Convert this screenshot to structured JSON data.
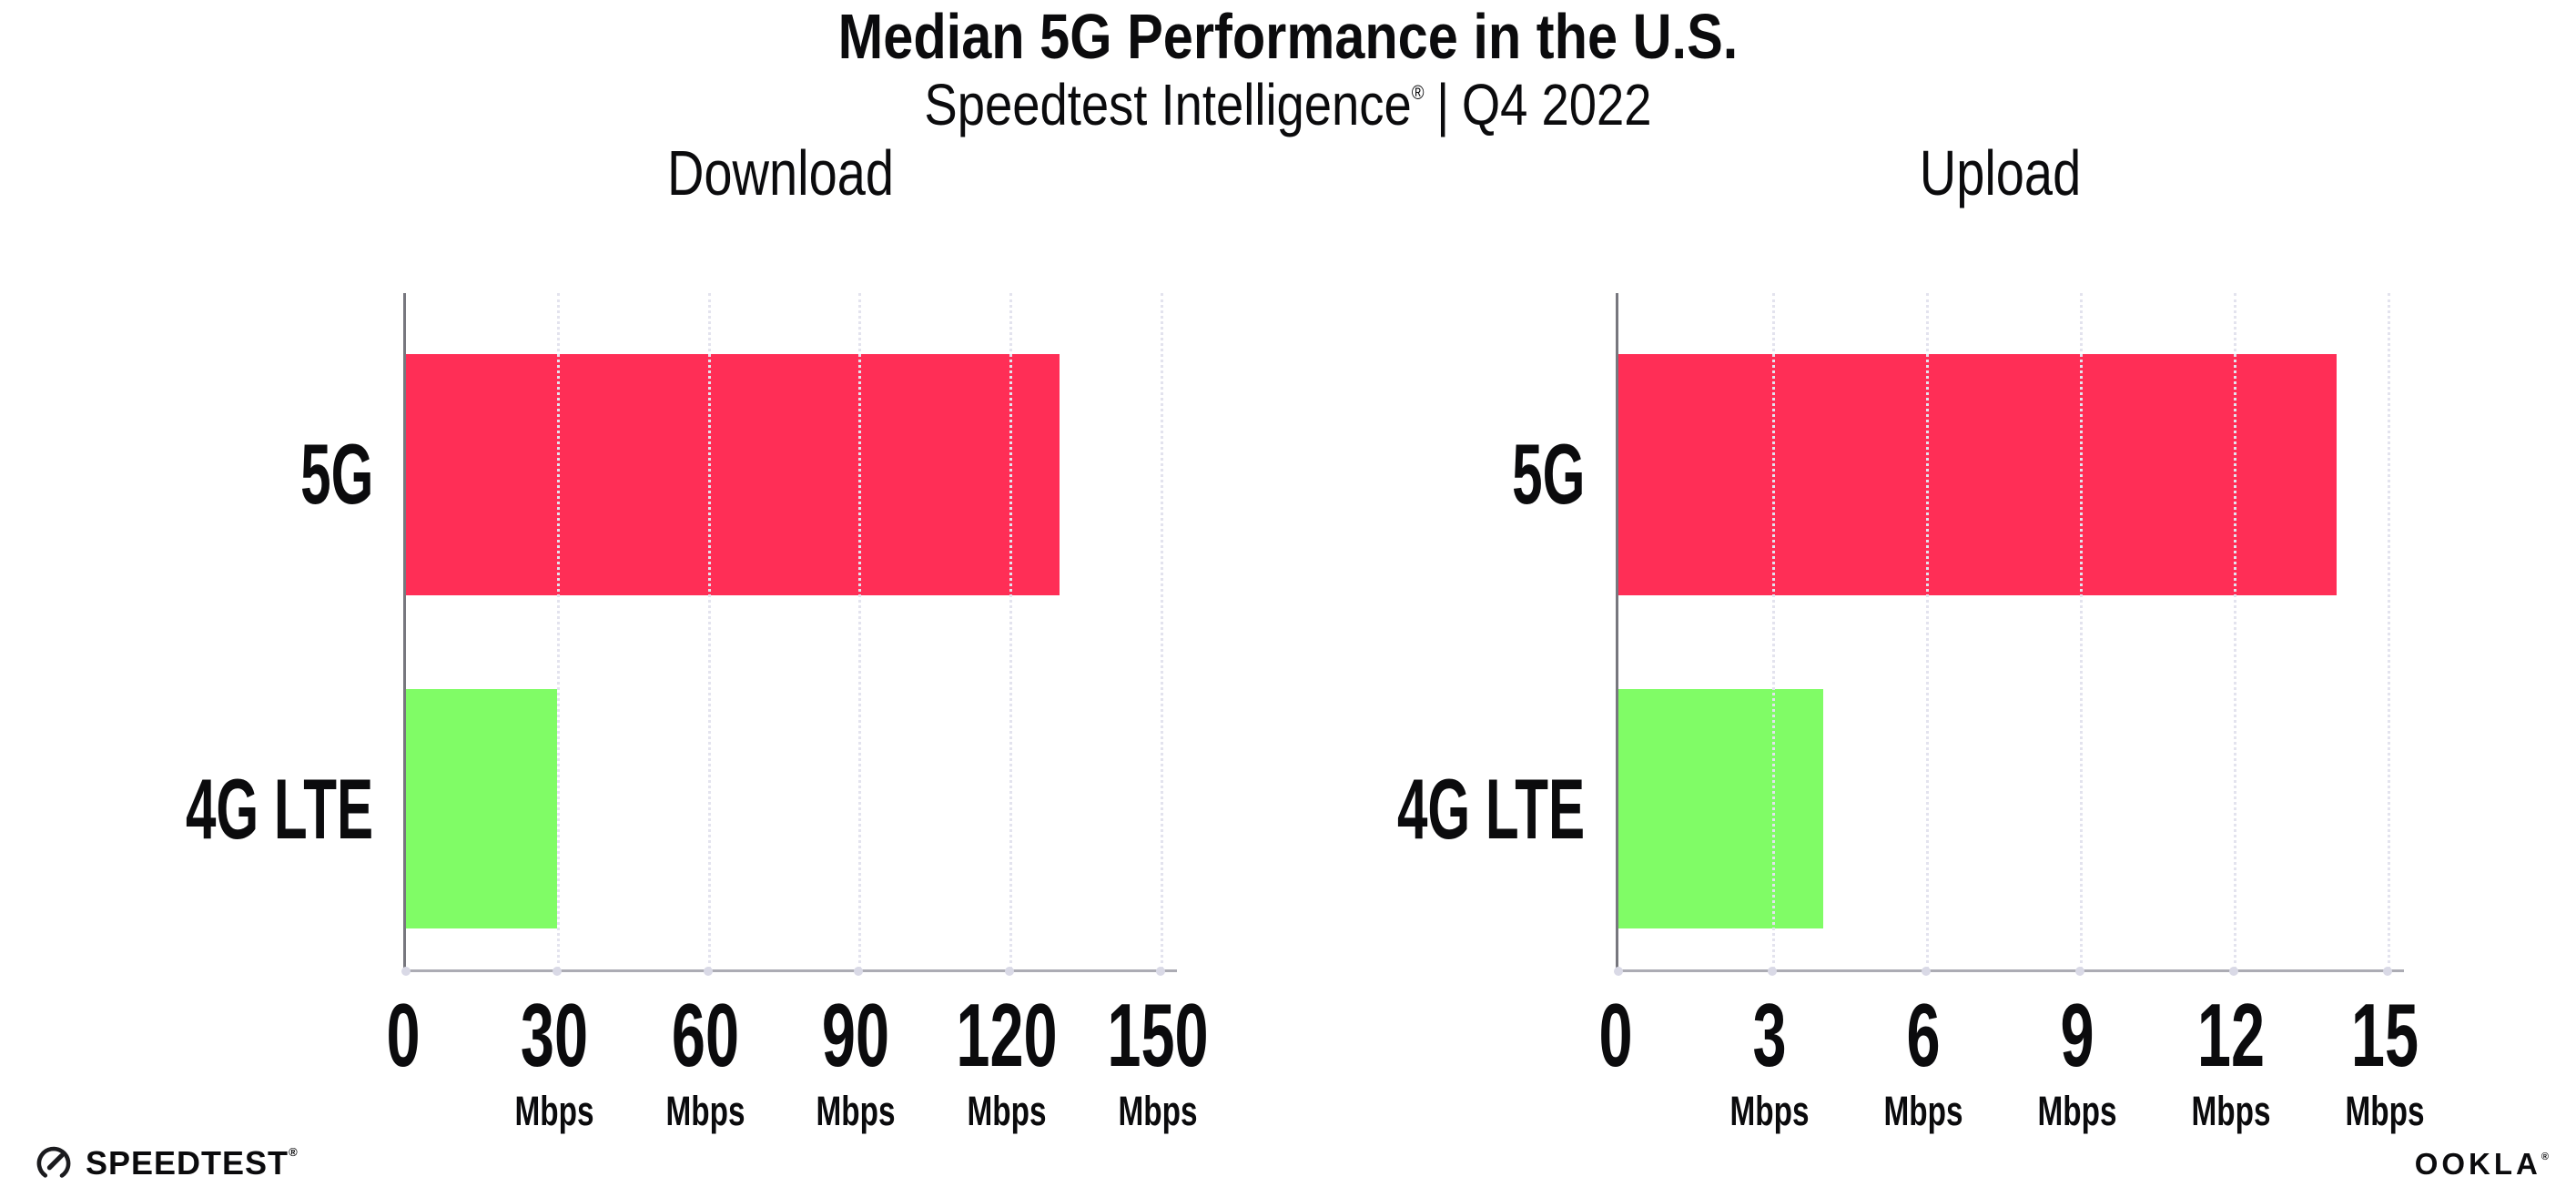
{
  "header": {
    "title": "Median 5G Performance in the U.S.",
    "subtitle_brand": "Speedtest Intelligence",
    "subtitle_reg": "®",
    "subtitle_sep": "|",
    "subtitle_period": "Q4 2022"
  },
  "chart_data": [
    {
      "type": "bar",
      "orientation": "horizontal",
      "title": "Download",
      "categories": [
        "5G",
        "4G LTE"
      ],
      "values": [
        130,
        30
      ],
      "unit": "Mbps",
      "xlim": [
        0,
        150
      ],
      "xticks": [
        0,
        30,
        60,
        90,
        120,
        150
      ],
      "bar_colors": [
        "#FF2E56",
        "#80FC66"
      ],
      "grid": "vertical-dotted",
      "legend": "none"
    },
    {
      "type": "bar",
      "orientation": "horizontal",
      "title": "Upload",
      "categories": [
        "5G",
        "4G LTE"
      ],
      "values": [
        14,
        4
      ],
      "unit": "Mbps",
      "xlim": [
        0,
        15
      ],
      "xticks": [
        0,
        3,
        6,
        9,
        12,
        15
      ],
      "bar_colors": [
        "#FF2E56",
        "#80FC66"
      ],
      "grid": "vertical-dotted",
      "legend": "none"
    }
  ],
  "footer": {
    "speedtest_label": "SPEEDTEST",
    "speedtest_reg": "®",
    "ookla_label": "OOKLA",
    "ookla_reg": "®"
  },
  "colors": {
    "bar_5g": "#FF2E56",
    "bar_4g_lte": "#80FC66",
    "gridline": "#E3E3EE",
    "y_axis": "#77777E",
    "x_axis": "#ACACB4",
    "text": "#0B0B0D"
  }
}
